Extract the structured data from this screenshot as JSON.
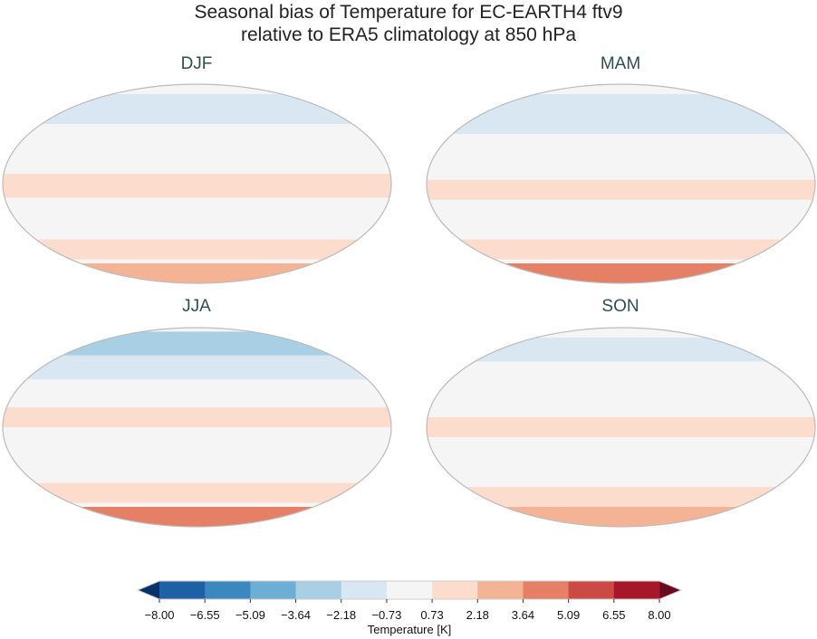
{
  "title": [
    "Seasonal bias of Temperature for EC-EARTH4 ftv9",
    "relative to ERA5 climatology at 850 hPa"
  ],
  "panels": [
    {
      "label": "DJF"
    },
    {
      "label": "MAM"
    },
    {
      "label": "JJA"
    },
    {
      "label": "SON"
    }
  ],
  "colorbar": {
    "label": "Temperature [K]",
    "ticks": [
      "−8.00",
      "−6.55",
      "−5.09",
      "−3.64",
      "−2.18",
      "−0.73",
      "0.73",
      "2.18",
      "3.64",
      "5.09",
      "6.55",
      "8.00"
    ],
    "colors": [
      "#1f5fa6",
      "#3b87c0",
      "#6caed4",
      "#a9cfe5",
      "#d8e7f1",
      "#f5f5f5",
      "#fbdccd",
      "#f5b396",
      "#e57f65",
      "#cb4a43",
      "#a51729"
    ],
    "under_color": "#08306b",
    "over_color": "#6b0a1f",
    "extend": "both"
  }
}
